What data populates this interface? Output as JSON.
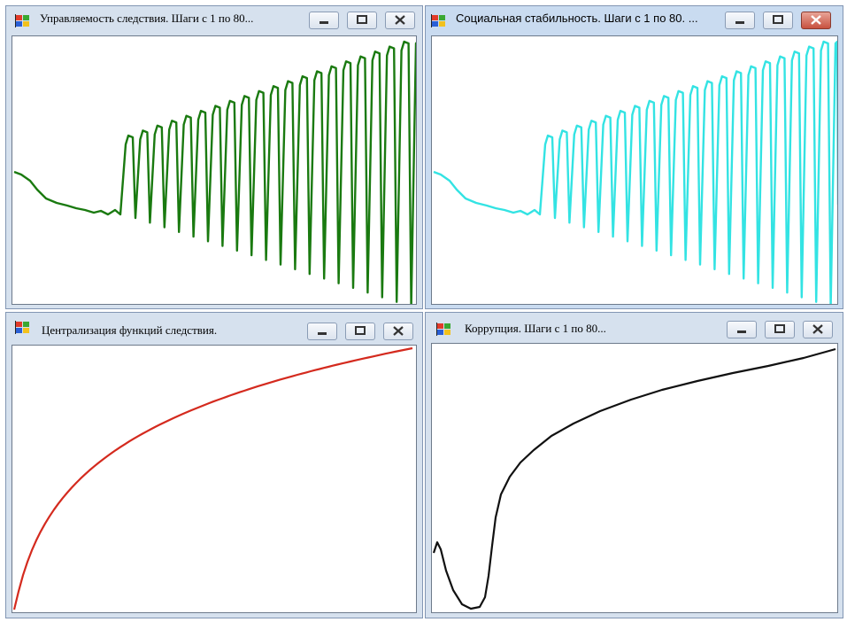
{
  "windows": [
    {
      "title": "Управляемость следствия. Шаги с 1 по 80...",
      "icon": "windows-flag-icon",
      "line_color": "#1a7a10",
      "active": false
    },
    {
      "title": "Социальная стабильность. Шаги с 1 по 80. ...",
      "icon": "windows-flag-icon",
      "line_color": "#33e3e3",
      "active": true
    },
    {
      "title": "Централизация функций следствия.",
      "icon": "windows-flag-icon",
      "line_color": "#d42a1e",
      "active": false
    },
    {
      "title": "Коррупция. Шаги с 1 по 80...",
      "icon": "windows-flag-icon",
      "line_color": "#111111",
      "active": false
    }
  ],
  "caption_buttons": {
    "minimize": "minimize-icon",
    "maximize": "maximize-icon",
    "close": "close-icon"
  }
}
